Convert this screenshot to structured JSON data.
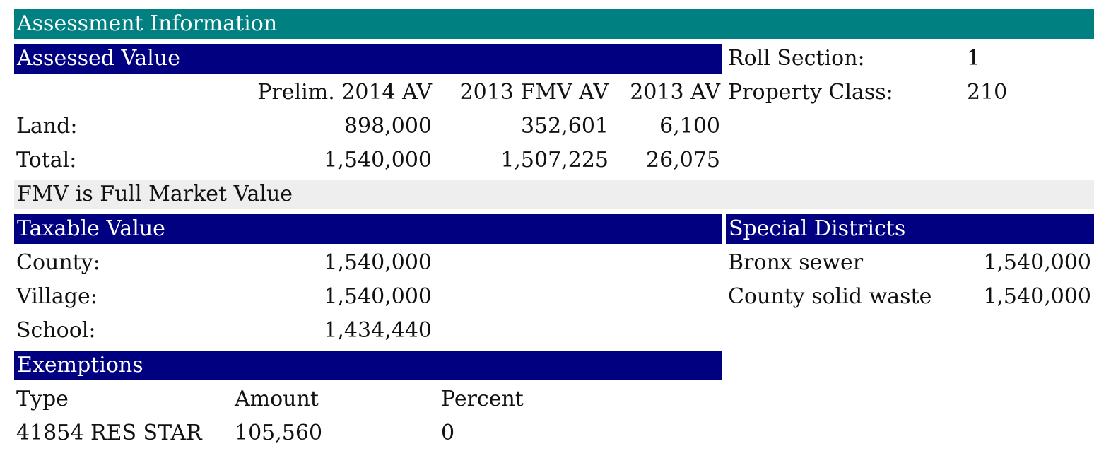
{
  "title": "Assessment Information",
  "assessed": {
    "header": "Assessed Value",
    "columns": [
      "Prelim. 2014 AV",
      "2013 FMV AV",
      "2013 AV"
    ],
    "rows": [
      {
        "label": "Land:",
        "values": [
          "898,000",
          "352,601",
          "6,100"
        ]
      },
      {
        "label": "Total:",
        "values": [
          "1,540,000",
          "1,507,225",
          "26,075"
        ]
      }
    ],
    "note": "FMV is Full Market Value"
  },
  "info": {
    "roll_section_label": "Roll Section:",
    "roll_section_value": "1",
    "property_class_label": "Property Class:",
    "property_class_value": "210"
  },
  "taxable": {
    "header": "Taxable Value",
    "rows": [
      {
        "label": "County:",
        "value": "1,540,000"
      },
      {
        "label": "Village:",
        "value": "1,540,000"
      },
      {
        "label": "School:",
        "value": "1,434,440"
      }
    ]
  },
  "special": {
    "header": "Special Districts",
    "rows": [
      {
        "label": "Bronx sewer",
        "value": "1,540,000"
      },
      {
        "label": "County solid waste",
        "value": "1,540,000"
      }
    ]
  },
  "exemptions": {
    "header": "Exemptions",
    "columns": [
      "Type",
      "Amount",
      "Percent"
    ],
    "rows": [
      {
        "type": "41854 RES STAR",
        "amount": "105,560",
        "percent": "0"
      }
    ]
  },
  "colors": {
    "teal_header": "#008080",
    "navy_header": "#000080",
    "note_bg": "#eeeeee"
  }
}
